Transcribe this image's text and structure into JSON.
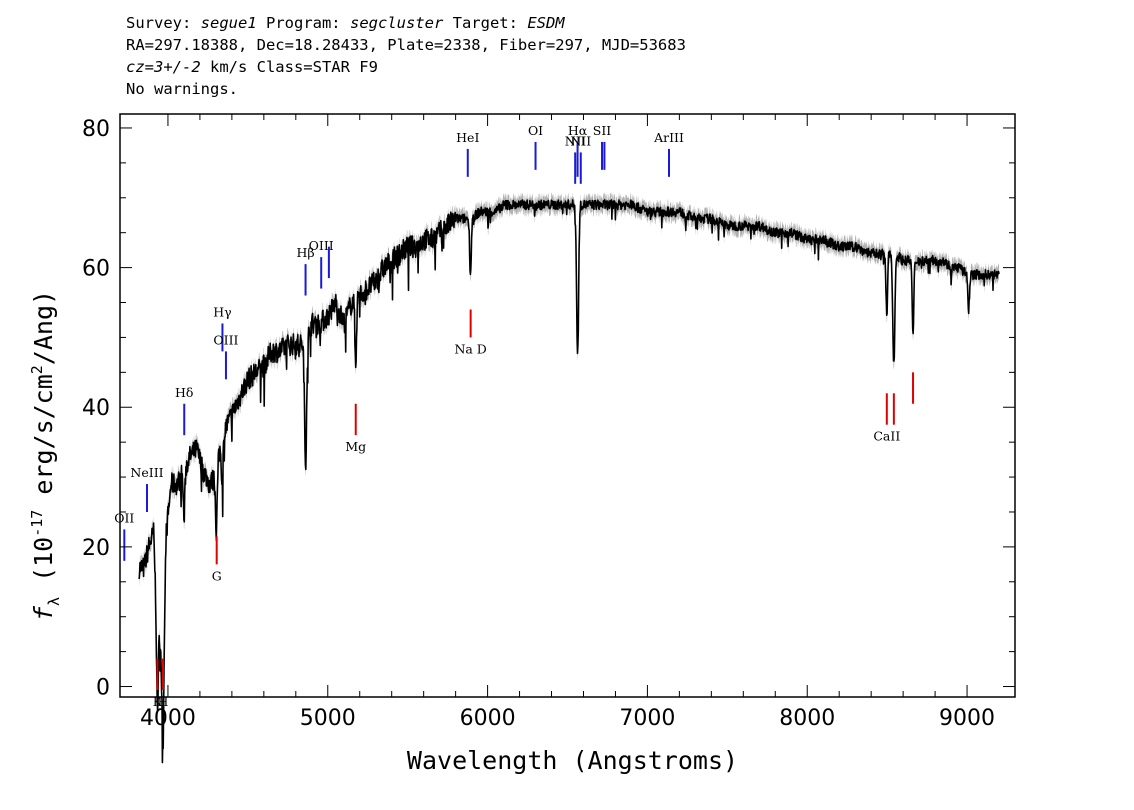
{
  "header": {
    "survey_label": "Survey: ",
    "survey": "segue1",
    "program_label": " Program: ",
    "program": "segcluster",
    "target_label": " Target: ",
    "target": "ESDM",
    "line2": "RA=297.18388, Dec=18.28433, Plate=2338, Fiber=297, MJD=53683",
    "cz": "cz=3+/-2",
    "line3_rest": " km/s Class=STAR F9",
    "line4": "No warnings."
  },
  "chart_data": {
    "type": "line",
    "xlabel": "Wavelength (Angstroms)",
    "ylabel": "f_λ (10^-17 erg/s/cm^2/Ang)",
    "xlim": [
      3700,
      9300
    ],
    "ylim": [
      -1.5,
      82
    ],
    "xticks": [
      4000,
      5000,
      6000,
      7000,
      8000,
      9000
    ],
    "yticks": [
      0,
      20,
      40,
      60,
      80
    ],
    "series": [
      {
        "color": "#000000",
        "x": [
          3820,
          3850,
          3880,
          3910,
          3930,
          3950,
          3970,
          3990,
          4020,
          4060,
          4100,
          4140,
          4180,
          4220,
          4260,
          4300,
          4340,
          4380,
          4420,
          4460,
          4500,
          4550,
          4600,
          4650,
          4700,
          4750,
          4800,
          4860,
          4900,
          4950,
          5000,
          5050,
          5100,
          5150,
          5200,
          5250,
          5300,
          5350,
          5400,
          5450,
          5500,
          5550,
          5600,
          5650,
          5700,
          5750,
          5800,
          5850,
          5900,
          5950,
          6000,
          6050,
          6100,
          6150,
          6200,
          6250,
          6300,
          6350,
          6400,
          6450,
          6500,
          6550,
          6600,
          6650,
          6700,
          6750,
          6800,
          6900,
          7000,
          7100,
          7200,
          7300,
          7400,
          7500,
          7600,
          7700,
          7800,
          7900,
          8000,
          8100,
          8200,
          8300,
          8400,
          8450,
          8500,
          8550,
          8600,
          8650,
          8700,
          8750,
          8800,
          8850,
          8900,
          8950,
          9000,
          9050,
          9100,
          9150,
          9200
        ],
        "values": [
          17,
          17,
          20,
          22,
          9,
          7,
          6,
          22,
          29,
          29,
          31,
          33,
          34,
          31,
          29,
          30,
          36,
          38,
          40,
          42,
          44,
          45,
          46,
          48,
          48,
          49,
          49,
          49,
          52,
          52,
          53,
          55,
          52,
          55,
          56,
          57,
          58,
          60,
          61,
          62,
          63,
          63,
          64,
          64,
          65,
          66,
          67,
          67,
          67,
          68,
          68,
          68,
          69,
          69,
          69,
          69,
          69,
          69,
          69,
          69,
          69,
          69,
          69,
          69,
          69,
          69,
          69,
          69,
          68,
          68,
          68,
          67,
          67,
          66,
          66,
          66,
          65,
          65,
          64,
          64,
          63,
          63,
          62,
          62,
          62,
          62,
          61,
          61,
          61,
          61,
          61,
          61,
          60,
          60,
          59,
          59,
          59,
          59,
          59
        ]
      }
    ],
    "dips": [
      {
        "x": 3934,
        "depth": 12
      },
      {
        "x": 3968,
        "depth": 14
      },
      {
        "x": 4101,
        "depth": 7
      },
      {
        "x": 4303,
        "depth": 8
      },
      {
        "x": 4340,
        "depth": 7
      },
      {
        "x": 4861,
        "depth": 17
      },
      {
        "x": 5175,
        "depth": 9
      },
      {
        "x": 5893,
        "depth": 8
      },
      {
        "x": 6563,
        "depth": 21
      },
      {
        "x": 8498,
        "depth": 9
      },
      {
        "x": 8542,
        "depth": 16
      },
      {
        "x": 8662,
        "depth": 11
      },
      {
        "x": 9010,
        "depth": 5
      }
    ]
  },
  "emission_lines": [
    {
      "label": "OII",
      "x": 3727,
      "y_top": 22.5,
      "y_bot": 18
    },
    {
      "label": "NeIII",
      "x": 3869,
      "y_top": 29,
      "y_bot": 25
    },
    {
      "label": "Hδ",
      "x": 4102,
      "y_top": 40.5,
      "y_bot": 36
    },
    {
      "label": "Hγ",
      "x": 4341,
      "y_top": 52,
      "y_bot": 48
    },
    {
      "label": "OIII",
      "x": 4363,
      "y_top": 48,
      "y_bot": 44
    },
    {
      "label": "Hβ",
      "x": 4861,
      "y_top": 60.5,
      "y_bot": 56
    },
    {
      "label": "OIII",
      "x": 4959,
      "y_top": 61.5,
      "y_bot": 57
    },
    {
      "label": "",
      "x": 5007,
      "y_top": 63,
      "y_bot": 58.5
    },
    {
      "label": "HeI",
      "x": 5876,
      "y_top": 77,
      "y_bot": 73
    },
    {
      "label": "OI",
      "x": 6300,
      "y_top": 78,
      "y_bot": 74
    },
    {
      "label": "NII",
      "x": 6548,
      "y_top": 76.5,
      "y_bot": 72
    },
    {
      "label": "Hα",
      "x": 6563,
      "y_top": 78,
      "y_bot": 73
    },
    {
      "label": "NII",
      "x": 6583,
      "y_top": 76.5,
      "y_bot": 72
    },
    {
      "label": "SII",
      "x": 6716,
      "y_top": 78,
      "y_bot": 74
    },
    {
      "label": "",
      "x": 6731,
      "y_top": 78,
      "y_bot": 74
    },
    {
      "label": "ArIII",
      "x": 7135,
      "y_top": 77,
      "y_bot": 73
    }
  ],
  "absorption_lines": [
    {
      "label": "K",
      "x": 3934,
      "y_top": 4,
      "y_bot": -0.5
    },
    {
      "label": "H",
      "x": 3969,
      "y_top": 4,
      "y_bot": -0.5
    },
    {
      "label": "G",
      "x": 4305,
      "y_top": 21.5,
      "y_bot": 17.5
    },
    {
      "label": "Mg",
      "x": 5175,
      "y_top": 40.5,
      "y_bot": 36
    },
    {
      "label": "Na D",
      "x": 5894,
      "y_top": 54,
      "y_bot": 50
    },
    {
      "label": "CaII",
      "x": 8498,
      "y_top": 42,
      "y_bot": 37.5
    },
    {
      "label": "",
      "x": 8542,
      "y_top": 42,
      "y_bot": 37.5
    },
    {
      "label": "",
      "x": 8662,
      "y_top": 45,
      "y_bot": 40.5
    }
  ],
  "colors": {
    "emission": "#1a1ad8",
    "absorption": "#e00000",
    "flux": "#000000",
    "error_band": "#b0b0b0"
  }
}
